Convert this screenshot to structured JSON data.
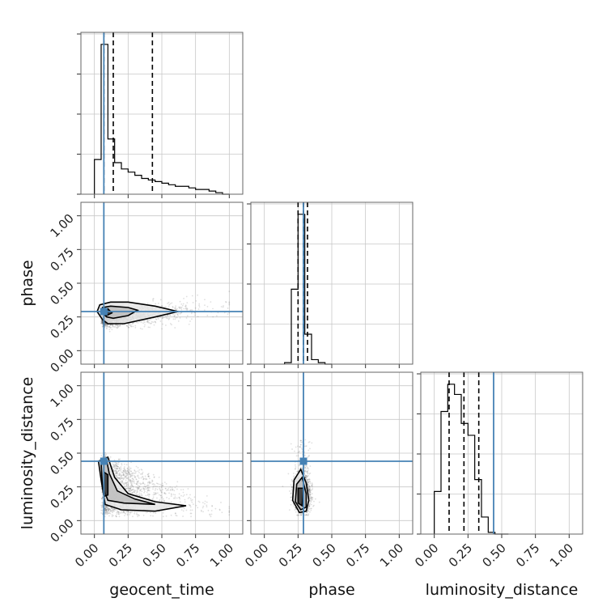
{
  "chart_data": {
    "type": "corner",
    "parameters": [
      "geocent_time",
      "phase",
      "luminosity_distance"
    ],
    "axis_range": [
      -0.1,
      1.1
    ],
    "tick_values": [
      0.0,
      0.25,
      0.5,
      0.75,
      1.0
    ],
    "tick_labels": [
      "0.00",
      "0.25",
      "0.50",
      "0.75",
      "1.00"
    ],
    "grid": true,
    "injection_values": {
      "geocent_time": 0.07,
      "phase": 0.29,
      "luminosity_distance": 0.44
    },
    "colors": {
      "injection": "#4682b4",
      "histogram": "#000000",
      "samples": "#555555",
      "grid": "#c8c8c8"
    },
    "histograms": {
      "geocent_time": {
        "bin_edges": [
          0.0,
          0.05,
          0.1,
          0.15,
          0.2,
          0.25,
          0.3,
          0.35,
          0.4,
          0.45,
          0.5,
          0.55,
          0.6,
          0.65,
          0.7,
          0.75,
          0.8,
          0.85,
          0.9,
          0.95,
          1.0
        ],
        "counts": [
          22,
          95,
          35,
          20,
          16,
          14,
          12,
          10,
          9,
          8,
          7,
          6,
          5,
          5,
          4,
          3,
          3,
          2,
          1,
          0
        ],
        "quantiles": [
          0.07,
          0.14,
          0.43
        ]
      },
      "phase": {
        "bin_edges": [
          0.15,
          0.2,
          0.25,
          0.3,
          0.35,
          0.4,
          0.45,
          0.5
        ],
        "counts": [
          1,
          50,
          100,
          20,
          3,
          1,
          0
        ],
        "quantiles": [
          0.25,
          0.29,
          0.32
        ]
      },
      "luminosity_distance": {
        "bin_edges": [
          0.0,
          0.05,
          0.1,
          0.15,
          0.2,
          0.25,
          0.3,
          0.35,
          0.4,
          0.45,
          0.5,
          0.55
        ],
        "counts": [
          25,
          72,
          88,
          82,
          65,
          58,
          32,
          10,
          1,
          0,
          0
        ],
        "quantiles": [
          0.11,
          0.22,
          0.33
        ]
      }
    },
    "scatter_panels": [
      {
        "x": "geocent_time",
        "y": "phase",
        "contour_levels": [
          [
            [
              0.02,
              0.29
            ],
            [
              0.06,
              0.23
            ],
            [
              0.1,
              0.2
            ],
            [
              0.22,
              0.2
            ],
            [
              0.45,
              0.25
            ],
            [
              0.62,
              0.29
            ],
            [
              0.45,
              0.33
            ],
            [
              0.25,
              0.36
            ],
            [
              0.12,
              0.36
            ],
            [
              0.04,
              0.34
            ]
          ],
          [
            [
              0.05,
              0.29
            ],
            [
              0.09,
              0.25
            ],
            [
              0.14,
              0.24
            ],
            [
              0.25,
              0.26
            ],
            [
              0.32,
              0.3
            ],
            [
              0.25,
              0.32
            ],
            [
              0.12,
              0.33
            ],
            [
              0.06,
              0.32
            ]
          ],
          [
            [
              0.07,
              0.29
            ],
            [
              0.09,
              0.26
            ],
            [
              0.13,
              0.28
            ],
            [
              0.1,
              0.31
            ]
          ]
        ]
      },
      {
        "x": "geocent_time",
        "y": "luminosity_distance",
        "contour_levels": [
          [
            [
              0.03,
              0.44
            ],
            [
              0.05,
              0.3
            ],
            [
              0.08,
              0.12
            ],
            [
              0.2,
              0.08
            ],
            [
              0.45,
              0.07
            ],
            [
              0.68,
              0.11
            ],
            [
              0.45,
              0.14
            ],
            [
              0.25,
              0.2
            ],
            [
              0.15,
              0.32
            ],
            [
              0.1,
              0.47
            ]
          ],
          [
            [
              0.05,
              0.42
            ],
            [
              0.06,
              0.25
            ],
            [
              0.1,
              0.15
            ],
            [
              0.22,
              0.13
            ],
            [
              0.45,
              0.12
            ],
            [
              0.3,
              0.16
            ],
            [
              0.17,
              0.22
            ],
            [
              0.11,
              0.35
            ],
            [
              0.09,
              0.45
            ]
          ],
          [
            [
              0.07,
              0.36
            ],
            [
              0.07,
              0.18
            ],
            [
              0.1,
              0.19
            ],
            [
              0.1,
              0.34
            ]
          ]
        ]
      },
      {
        "x": "phase",
        "y": "luminosity_distance",
        "contour_levels": [
          [
            [
              0.22,
              0.3
            ],
            [
              0.21,
              0.15
            ],
            [
              0.26,
              0.06
            ],
            [
              0.31,
              0.07
            ],
            [
              0.33,
              0.15
            ],
            [
              0.31,
              0.28
            ],
            [
              0.27,
              0.38
            ]
          ],
          [
            [
              0.24,
              0.27
            ],
            [
              0.23,
              0.14
            ],
            [
              0.27,
              0.08
            ],
            [
              0.31,
              0.1
            ],
            [
              0.31,
              0.2
            ],
            [
              0.28,
              0.32
            ]
          ],
          [
            [
              0.25,
              0.24
            ],
            [
              0.25,
              0.13
            ],
            [
              0.28,
              0.11
            ],
            [
              0.29,
              0.24
            ]
          ]
        ]
      }
    ]
  }
}
